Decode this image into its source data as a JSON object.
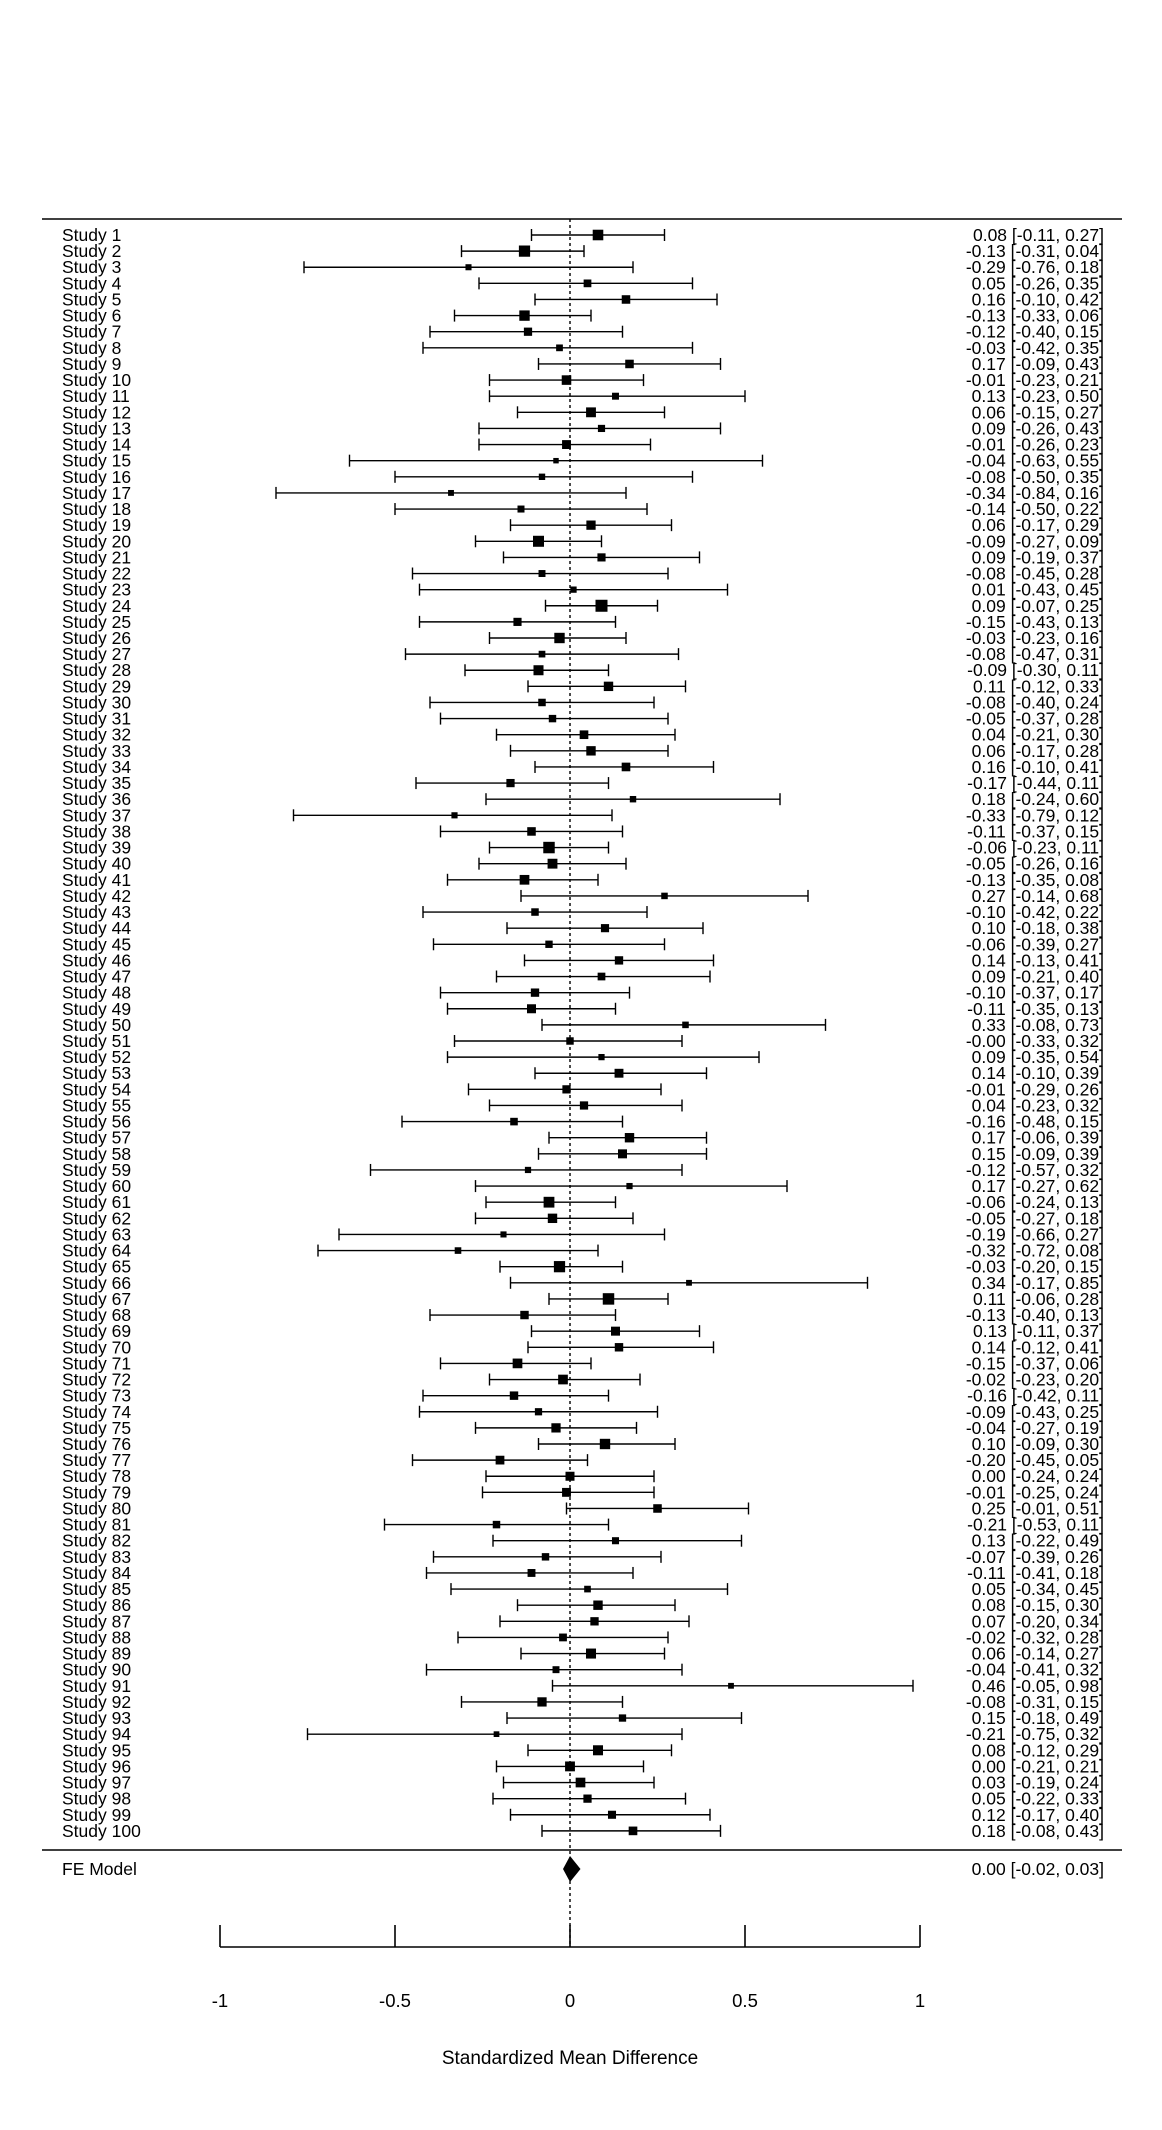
{
  "chart_data": {
    "type": "forest",
    "xlabel": "Standardized Mean Difference",
    "xlim": [
      -1,
      1
    ],
    "xticks": [
      -1,
      -0.5,
      0,
      0.5,
      1
    ],
    "xtick_labels": [
      "-1",
      "-0.5",
      "0",
      "0.5",
      "1"
    ],
    "reference_line": 0,
    "studies": [
      {
        "label": "Study 1",
        "est": 0.08,
        "lo": -0.11,
        "hi": 0.27,
        "text": "0.08 [-0.11, 0.27]"
      },
      {
        "label": "Study 2",
        "est": -0.13,
        "lo": -0.31,
        "hi": 0.04,
        "text": "-0.13 [-0.31, 0.04]"
      },
      {
        "label": "Study 3",
        "est": -0.29,
        "lo": -0.76,
        "hi": 0.18,
        "text": "-0.29 [-0.76, 0.18]"
      },
      {
        "label": "Study 4",
        "est": 0.05,
        "lo": -0.26,
        "hi": 0.35,
        "text": "0.05 [-0.26, 0.35]"
      },
      {
        "label": "Study 5",
        "est": 0.16,
        "lo": -0.1,
        "hi": 0.42,
        "text": "0.16 [-0.10, 0.42]"
      },
      {
        "label": "Study 6",
        "est": -0.13,
        "lo": -0.33,
        "hi": 0.06,
        "text": "-0.13 [-0.33, 0.06]"
      },
      {
        "label": "Study 7",
        "est": -0.12,
        "lo": -0.4,
        "hi": 0.15,
        "text": "-0.12 [-0.40, 0.15]"
      },
      {
        "label": "Study 8",
        "est": -0.03,
        "lo": -0.42,
        "hi": 0.35,
        "text": "-0.03 [-0.42, 0.35]"
      },
      {
        "label": "Study 9",
        "est": 0.17,
        "lo": -0.09,
        "hi": 0.43,
        "text": "0.17 [-0.09, 0.43]"
      },
      {
        "label": "Study 10",
        "est": -0.01,
        "lo": -0.23,
        "hi": 0.21,
        "text": "-0.01 [-0.23, 0.21]"
      },
      {
        "label": "Study 11",
        "est": 0.13,
        "lo": -0.23,
        "hi": 0.5,
        "text": "0.13 [-0.23, 0.50]"
      },
      {
        "label": "Study 12",
        "est": 0.06,
        "lo": -0.15,
        "hi": 0.27,
        "text": "0.06 [-0.15, 0.27]"
      },
      {
        "label": "Study 13",
        "est": 0.09,
        "lo": -0.26,
        "hi": 0.43,
        "text": "0.09 [-0.26, 0.43]"
      },
      {
        "label": "Study 14",
        "est": -0.01,
        "lo": -0.26,
        "hi": 0.23,
        "text": "-0.01 [-0.26, 0.23]"
      },
      {
        "label": "Study 15",
        "est": -0.04,
        "lo": -0.63,
        "hi": 0.55,
        "text": "-0.04 [-0.63, 0.55]"
      },
      {
        "label": "Study 16",
        "est": -0.08,
        "lo": -0.5,
        "hi": 0.35,
        "text": "-0.08 [-0.50, 0.35]"
      },
      {
        "label": "Study 17",
        "est": -0.34,
        "lo": -0.84,
        "hi": 0.16,
        "text": "-0.34 [-0.84, 0.16]"
      },
      {
        "label": "Study 18",
        "est": -0.14,
        "lo": -0.5,
        "hi": 0.22,
        "text": "-0.14 [-0.50, 0.22]"
      },
      {
        "label": "Study 19",
        "est": 0.06,
        "lo": -0.17,
        "hi": 0.29,
        "text": "0.06 [-0.17, 0.29]"
      },
      {
        "label": "Study 20",
        "est": -0.09,
        "lo": -0.27,
        "hi": 0.09,
        "text": "-0.09 [-0.27, 0.09]"
      },
      {
        "label": "Study 21",
        "est": 0.09,
        "lo": -0.19,
        "hi": 0.37,
        "text": "0.09 [-0.19, 0.37]"
      },
      {
        "label": "Study 22",
        "est": -0.08,
        "lo": -0.45,
        "hi": 0.28,
        "text": "-0.08 [-0.45, 0.28]"
      },
      {
        "label": "Study 23",
        "est": 0.01,
        "lo": -0.43,
        "hi": 0.45,
        "text": "0.01 [-0.43, 0.45]"
      },
      {
        "label": "Study 24",
        "est": 0.09,
        "lo": -0.07,
        "hi": 0.25,
        "text": "0.09 [-0.07, 0.25]"
      },
      {
        "label": "Study 25",
        "est": -0.15,
        "lo": -0.43,
        "hi": 0.13,
        "text": "-0.15 [-0.43, 0.13]"
      },
      {
        "label": "Study 26",
        "est": -0.03,
        "lo": -0.23,
        "hi": 0.16,
        "text": "-0.03 [-0.23, 0.16]"
      },
      {
        "label": "Study 27",
        "est": -0.08,
        "lo": -0.47,
        "hi": 0.31,
        "text": "-0.08 [-0.47, 0.31]"
      },
      {
        "label": "Study 28",
        "est": -0.09,
        "lo": -0.3,
        "hi": 0.11,
        "text": "-0.09 [-0.30, 0.11]"
      },
      {
        "label": "Study 29",
        "est": 0.11,
        "lo": -0.12,
        "hi": 0.33,
        "text": "0.11 [-0.12, 0.33]"
      },
      {
        "label": "Study 30",
        "est": -0.08,
        "lo": -0.4,
        "hi": 0.24,
        "text": "-0.08 [-0.40, 0.24]"
      },
      {
        "label": "Study 31",
        "est": -0.05,
        "lo": -0.37,
        "hi": 0.28,
        "text": "-0.05 [-0.37, 0.28]"
      },
      {
        "label": "Study 32",
        "est": 0.04,
        "lo": -0.21,
        "hi": 0.3,
        "text": "0.04 [-0.21, 0.30]"
      },
      {
        "label": "Study 33",
        "est": 0.06,
        "lo": -0.17,
        "hi": 0.28,
        "text": "0.06 [-0.17, 0.28]"
      },
      {
        "label": "Study 34",
        "est": 0.16,
        "lo": -0.1,
        "hi": 0.41,
        "text": "0.16 [-0.10, 0.41]"
      },
      {
        "label": "Study 35",
        "est": -0.17,
        "lo": -0.44,
        "hi": 0.11,
        "text": "-0.17 [-0.44, 0.11]"
      },
      {
        "label": "Study 36",
        "est": 0.18,
        "lo": -0.24,
        "hi": 0.6,
        "text": "0.18 [-0.24, 0.60]"
      },
      {
        "label": "Study 37",
        "est": -0.33,
        "lo": -0.79,
        "hi": 0.12,
        "text": "-0.33 [-0.79, 0.12]"
      },
      {
        "label": "Study 38",
        "est": -0.11,
        "lo": -0.37,
        "hi": 0.15,
        "text": "-0.11 [-0.37, 0.15]"
      },
      {
        "label": "Study 39",
        "est": -0.06,
        "lo": -0.23,
        "hi": 0.11,
        "text": "-0.06 [-0.23, 0.11]"
      },
      {
        "label": "Study 40",
        "est": -0.05,
        "lo": -0.26,
        "hi": 0.16,
        "text": "-0.05 [-0.26, 0.16]"
      },
      {
        "label": "Study 41",
        "est": -0.13,
        "lo": -0.35,
        "hi": 0.08,
        "text": "-0.13 [-0.35, 0.08]"
      },
      {
        "label": "Study 42",
        "est": 0.27,
        "lo": -0.14,
        "hi": 0.68,
        "text": "0.27 [-0.14, 0.68]"
      },
      {
        "label": "Study 43",
        "est": -0.1,
        "lo": -0.42,
        "hi": 0.22,
        "text": "-0.10 [-0.42, 0.22]"
      },
      {
        "label": "Study 44",
        "est": 0.1,
        "lo": -0.18,
        "hi": 0.38,
        "text": "0.10 [-0.18, 0.38]"
      },
      {
        "label": "Study 45",
        "est": -0.06,
        "lo": -0.39,
        "hi": 0.27,
        "text": "-0.06 [-0.39, 0.27]"
      },
      {
        "label": "Study 46",
        "est": 0.14,
        "lo": -0.13,
        "hi": 0.41,
        "text": "0.14 [-0.13, 0.41]"
      },
      {
        "label": "Study 47",
        "est": 0.09,
        "lo": -0.21,
        "hi": 0.4,
        "text": "0.09 [-0.21, 0.40]"
      },
      {
        "label": "Study 48",
        "est": -0.1,
        "lo": -0.37,
        "hi": 0.17,
        "text": "-0.10 [-0.37, 0.17]"
      },
      {
        "label": "Study 49",
        "est": -0.11,
        "lo": -0.35,
        "hi": 0.13,
        "text": "-0.11 [-0.35, 0.13]"
      },
      {
        "label": "Study 50",
        "est": 0.33,
        "lo": -0.08,
        "hi": 0.73,
        "text": "0.33 [-0.08, 0.73]"
      },
      {
        "label": "Study 51",
        "est": -0.0,
        "lo": -0.33,
        "hi": 0.32,
        "text": "-0.00 [-0.33, 0.32]"
      },
      {
        "label": "Study 52",
        "est": 0.09,
        "lo": -0.35,
        "hi": 0.54,
        "text": "0.09 [-0.35, 0.54]"
      },
      {
        "label": "Study 53",
        "est": 0.14,
        "lo": -0.1,
        "hi": 0.39,
        "text": "0.14 [-0.10, 0.39]"
      },
      {
        "label": "Study 54",
        "est": -0.01,
        "lo": -0.29,
        "hi": 0.26,
        "text": "-0.01 [-0.29, 0.26]"
      },
      {
        "label": "Study 55",
        "est": 0.04,
        "lo": -0.23,
        "hi": 0.32,
        "text": "0.04 [-0.23, 0.32]"
      },
      {
        "label": "Study 56",
        "est": -0.16,
        "lo": -0.48,
        "hi": 0.15,
        "text": "-0.16 [-0.48, 0.15]"
      },
      {
        "label": "Study 57",
        "est": 0.17,
        "lo": -0.06,
        "hi": 0.39,
        "text": "0.17 [-0.06, 0.39]"
      },
      {
        "label": "Study 58",
        "est": 0.15,
        "lo": -0.09,
        "hi": 0.39,
        "text": "0.15 [-0.09, 0.39]"
      },
      {
        "label": "Study 59",
        "est": -0.12,
        "lo": -0.57,
        "hi": 0.32,
        "text": "-0.12 [-0.57, 0.32]"
      },
      {
        "label": "Study 60",
        "est": 0.17,
        "lo": -0.27,
        "hi": 0.62,
        "text": "0.17 [-0.27, 0.62]"
      },
      {
        "label": "Study 61",
        "est": -0.06,
        "lo": -0.24,
        "hi": 0.13,
        "text": "-0.06 [-0.24, 0.13]"
      },
      {
        "label": "Study 62",
        "est": -0.05,
        "lo": -0.27,
        "hi": 0.18,
        "text": "-0.05 [-0.27, 0.18]"
      },
      {
        "label": "Study 63",
        "est": -0.19,
        "lo": -0.66,
        "hi": 0.27,
        "text": "-0.19 [-0.66, 0.27]"
      },
      {
        "label": "Study 64",
        "est": -0.32,
        "lo": -0.72,
        "hi": 0.08,
        "text": "-0.32 [-0.72, 0.08]"
      },
      {
        "label": "Study 65",
        "est": -0.03,
        "lo": -0.2,
        "hi": 0.15,
        "text": "-0.03 [-0.20, 0.15]"
      },
      {
        "label": "Study 66",
        "est": 0.34,
        "lo": -0.17,
        "hi": 0.85,
        "text": "0.34 [-0.17, 0.85]"
      },
      {
        "label": "Study 67",
        "est": 0.11,
        "lo": -0.06,
        "hi": 0.28,
        "text": "0.11 [-0.06, 0.28]"
      },
      {
        "label": "Study 68",
        "est": -0.13,
        "lo": -0.4,
        "hi": 0.13,
        "text": "-0.13 [-0.40, 0.13]"
      },
      {
        "label": "Study 69",
        "est": 0.13,
        "lo": -0.11,
        "hi": 0.37,
        "text": "0.13 [-0.11, 0.37]"
      },
      {
        "label": "Study 70",
        "est": 0.14,
        "lo": -0.12,
        "hi": 0.41,
        "text": "0.14 [-0.12, 0.41]"
      },
      {
        "label": "Study 71",
        "est": -0.15,
        "lo": -0.37,
        "hi": 0.06,
        "text": "-0.15 [-0.37, 0.06]"
      },
      {
        "label": "Study 72",
        "est": -0.02,
        "lo": -0.23,
        "hi": 0.2,
        "text": "-0.02 [-0.23, 0.20]"
      },
      {
        "label": "Study 73",
        "est": -0.16,
        "lo": -0.42,
        "hi": 0.11,
        "text": "-0.16 [-0.42, 0.11]"
      },
      {
        "label": "Study 74",
        "est": -0.09,
        "lo": -0.43,
        "hi": 0.25,
        "text": "-0.09 [-0.43, 0.25]"
      },
      {
        "label": "Study 75",
        "est": -0.04,
        "lo": -0.27,
        "hi": 0.19,
        "text": "-0.04 [-0.27, 0.19]"
      },
      {
        "label": "Study 76",
        "est": 0.1,
        "lo": -0.09,
        "hi": 0.3,
        "text": "0.10 [-0.09, 0.30]"
      },
      {
        "label": "Study 77",
        "est": -0.2,
        "lo": -0.45,
        "hi": 0.05,
        "text": "-0.20 [-0.45, 0.05]"
      },
      {
        "label": "Study 78",
        "est": 0.0,
        "lo": -0.24,
        "hi": 0.24,
        "text": "0.00 [-0.24, 0.24]"
      },
      {
        "label": "Study 79",
        "est": -0.01,
        "lo": -0.25,
        "hi": 0.24,
        "text": "-0.01 [-0.25, 0.24]"
      },
      {
        "label": "Study 80",
        "est": 0.25,
        "lo": -0.01,
        "hi": 0.51,
        "text": "0.25 [-0.01, 0.51]"
      },
      {
        "label": "Study 81",
        "est": -0.21,
        "lo": -0.53,
        "hi": 0.11,
        "text": "-0.21 [-0.53, 0.11]"
      },
      {
        "label": "Study 82",
        "est": 0.13,
        "lo": -0.22,
        "hi": 0.49,
        "text": "0.13 [-0.22, 0.49]"
      },
      {
        "label": "Study 83",
        "est": -0.07,
        "lo": -0.39,
        "hi": 0.26,
        "text": "-0.07 [-0.39, 0.26]"
      },
      {
        "label": "Study 84",
        "est": -0.11,
        "lo": -0.41,
        "hi": 0.18,
        "text": "-0.11 [-0.41, 0.18]"
      },
      {
        "label": "Study 85",
        "est": 0.05,
        "lo": -0.34,
        "hi": 0.45,
        "text": "0.05 [-0.34, 0.45]"
      },
      {
        "label": "Study 86",
        "est": 0.08,
        "lo": -0.15,
        "hi": 0.3,
        "text": "0.08 [-0.15, 0.30]"
      },
      {
        "label": "Study 87",
        "est": 0.07,
        "lo": -0.2,
        "hi": 0.34,
        "text": "0.07 [-0.20, 0.34]"
      },
      {
        "label": "Study 88",
        "est": -0.02,
        "lo": -0.32,
        "hi": 0.28,
        "text": "-0.02 [-0.32, 0.28]"
      },
      {
        "label": "Study 89",
        "est": 0.06,
        "lo": -0.14,
        "hi": 0.27,
        "text": "0.06 [-0.14, 0.27]"
      },
      {
        "label": "Study 90",
        "est": -0.04,
        "lo": -0.41,
        "hi": 0.32,
        "text": "-0.04 [-0.41, 0.32]"
      },
      {
        "label": "Study 91",
        "est": 0.46,
        "lo": -0.05,
        "hi": 0.98,
        "text": "0.46 [-0.05, 0.98]"
      },
      {
        "label": "Study 92",
        "est": -0.08,
        "lo": -0.31,
        "hi": 0.15,
        "text": "-0.08 [-0.31, 0.15]"
      },
      {
        "label": "Study 93",
        "est": 0.15,
        "lo": -0.18,
        "hi": 0.49,
        "text": "0.15 [-0.18, 0.49]"
      },
      {
        "label": "Study 94",
        "est": -0.21,
        "lo": -0.75,
        "hi": 0.32,
        "text": "-0.21 [-0.75, 0.32]"
      },
      {
        "label": "Study 95",
        "est": 0.08,
        "lo": -0.12,
        "hi": 0.29,
        "text": "0.08 [-0.12, 0.29]"
      },
      {
        "label": "Study 96",
        "est": 0.0,
        "lo": -0.21,
        "hi": 0.21,
        "text": "0.00 [-0.21, 0.21]"
      },
      {
        "label": "Study 97",
        "est": 0.03,
        "lo": -0.19,
        "hi": 0.24,
        "text": "0.03 [-0.19, 0.24]"
      },
      {
        "label": "Study 98",
        "est": 0.05,
        "lo": -0.22,
        "hi": 0.33,
        "text": "0.05 [-0.22, 0.33]"
      },
      {
        "label": "Study 99",
        "est": 0.12,
        "lo": -0.17,
        "hi": 0.4,
        "text": "0.12 [-0.17, 0.40]"
      },
      {
        "label": "Study 100",
        "est": 0.18,
        "lo": -0.08,
        "hi": 0.43,
        "text": "0.18 [-0.08, 0.43]"
      }
    ],
    "summary": {
      "label": "FE Model",
      "est": 0.0,
      "lo": -0.02,
      "hi": 0.03,
      "text": "0.00 [-0.02, 0.03]"
    }
  }
}
